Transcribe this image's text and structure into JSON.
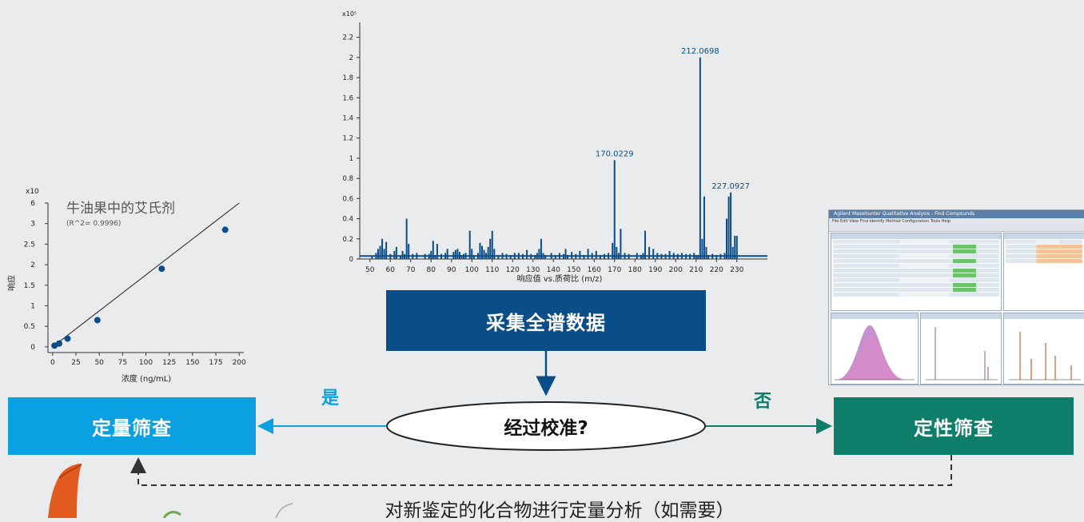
{
  "flow": {
    "acquire_label": "采集全谱数据",
    "decision_label": "经过校准?",
    "yes_label": "是",
    "no_label": "否",
    "quant_label": "定量筛查",
    "qual_label": "定性筛查",
    "bottom_note": "对新鉴定的化合物进行定量分析（如需要）"
  },
  "colors": {
    "acquire": "#0a4d88",
    "quant": "#0aa0e2",
    "qual": "#0e7d6a",
    "chart_blue": "#0a4d88"
  },
  "chart_data": [
    {
      "type": "scatter",
      "title": "牛油果中的艾氏剂",
      "subtitle": "(R^2= 0.9996)",
      "xlabel": "浓度 (ng/mL)",
      "ylabel": "响应",
      "y_multiplier": "x10",
      "xlim": [
        -5,
        205
      ],
      "ylim": [
        -0.1,
        6
      ],
      "x_ticks": [
        0,
        25,
        50,
        75,
        100,
        125,
        150,
        175,
        200
      ],
      "y_ticks": [
        0,
        0.5,
        1,
        1.5,
        2,
        2.5,
        3,
        6
      ],
      "points": [
        {
          "x": 2,
          "y": 0.03
        },
        {
          "x": 7,
          "y": 0.08
        },
        {
          "x": 16,
          "y": 0.2
        },
        {
          "x": 48,
          "y": 0.65
        },
        {
          "x": 117,
          "y": 1.9
        },
        {
          "x": 185,
          "y": 2.85
        }
      ],
      "fit_line": {
        "x": [
          0,
          200
        ],
        "y": [
          0,
          3.05
        ]
      }
    },
    {
      "type": "bar",
      "xlabel": "响应值 vs.质荷比 (m/z)",
      "y_multiplier": "x10⁵",
      "xlim": [
        45,
        245
      ],
      "ylim": [
        0,
        2.3
      ],
      "x_ticks": [
        50,
        60,
        70,
        80,
        90,
        100,
        110,
        120,
        130,
        140,
        150,
        160,
        170,
        180,
        190,
        200,
        210,
        220,
        230
      ],
      "y_ticks": [
        0,
        0.2,
        0.4,
        0.6,
        0.8,
        1,
        1.2,
        1.4,
        1.6,
        1.8,
        2,
        2.2
      ],
      "x": [
        51,
        53,
        54,
        55,
        56,
        57,
        58,
        60,
        62,
        63,
        65,
        66,
        67,
        68,
        69,
        71,
        73,
        77,
        79,
        80,
        81,
        82,
        83,
        85,
        87,
        88,
        91,
        92,
        93,
        94,
        95,
        96,
        97,
        99,
        100,
        101,
        103,
        104,
        105,
        106,
        107,
        108,
        109,
        110,
        111,
        113,
        115,
        117,
        119,
        121,
        123,
        125,
        127,
        129,
        131,
        132,
        133,
        134,
        135,
        136,
        139,
        141,
        143,
        145,
        146,
        147,
        149,
        151,
        153,
        155,
        157,
        159,
        161,
        163,
        165,
        167,
        169,
        170,
        171,
        172,
        173,
        175,
        177,
        181,
        183,
        184,
        185,
        187,
        189,
        191,
        193,
        195,
        197,
        199,
        201,
        203,
        205,
        207,
        209,
        210,
        211,
        212,
        213,
        214,
        215,
        216,
        218,
        220,
        222,
        224,
        225,
        226,
        227,
        228,
        229,
        230
      ],
      "values": [
        0.03,
        0.06,
        0.1,
        0.13,
        0.2,
        0.1,
        0.17,
        0.05,
        0.08,
        0.12,
        0.03,
        0.08,
        0.05,
        0.4,
        0.15,
        0.05,
        0.06,
        0.05,
        0.05,
        0.08,
        0.18,
        0.04,
        0.15,
        0.05,
        0.06,
        0.1,
        0.07,
        0.09,
        0.1,
        0.07,
        0.04,
        0.05,
        0.06,
        0.28,
        0.1,
        0.04,
        0.06,
        0.16,
        0.13,
        0.09,
        0.06,
        0.12,
        0.2,
        0.28,
        0.1,
        0.04,
        0.06,
        0.05,
        0.04,
        0.06,
        0.06,
        0.05,
        0.09,
        0.05,
        0.04,
        0.06,
        0.1,
        0.2,
        0.06,
        0.04,
        0.06,
        0.04,
        0.06,
        0.05,
        0.1,
        0.04,
        0.07,
        0.05,
        0.08,
        0.04,
        0.1,
        0.06,
        0.08,
        0.04,
        0.05,
        0.06,
        0.16,
        0.98,
        0.12,
        0.06,
        0.3,
        0.06,
        0.05,
        0.06,
        0.04,
        0.06,
        0.28,
        0.12,
        0.1,
        0.06,
        0.05,
        0.05,
        0.08,
        0.06,
        0.05,
        0.06,
        0.05,
        0.05,
        0.06,
        0.04,
        0.04,
        2.0,
        0.2,
        0.62,
        0.12,
        0.04,
        0.05,
        0.04,
        0.05,
        0.06,
        0.4,
        0.62,
        0.66,
        0.12,
        0.23,
        0.23
      ],
      "annotations": [
        {
          "x": 170,
          "text": "170.0229"
        },
        {
          "x": 212,
          "text": "212.0698"
        },
        {
          "x": 227,
          "text": "227.0927"
        }
      ]
    }
  ],
  "software": {
    "title": "Agilent MassHunter Qualitative Analysis - Find Compounds",
    "menu": "File  Edit  View  Find  Identify  Method  Configuration  Tools  Help"
  }
}
